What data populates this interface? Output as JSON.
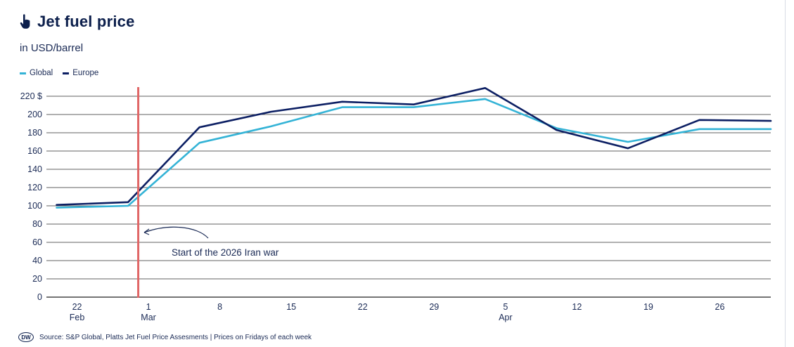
{
  "header": {
    "title": "Jet fuel price",
    "subtitle": "in USD/barrel",
    "icon": "pointing-hand-icon"
  },
  "legend": [
    {
      "label": "Global",
      "color": "#34b3d6"
    },
    {
      "label": "Europe",
      "color": "#0c1f63"
    }
  ],
  "annotation": {
    "text": "Start of the 2026 Iran war",
    "marker_color": "#e06666"
  },
  "footer": {
    "logo_text": "DW",
    "source": "Source: S&P Global, Platts Jet Fuel Price Assesments | Prices on Fridays of each week"
  },
  "chart_data": {
    "type": "line",
    "title": "Jet fuel price",
    "subtitle": "in USD/barrel",
    "ylim": [
      0,
      220
    ],
    "y_ticks": [
      0,
      20,
      40,
      60,
      80,
      100,
      120,
      140,
      160,
      180,
      200,
      220
    ],
    "y_tick_labels": [
      "0",
      "20",
      "40",
      "60",
      "80",
      "100",
      "120",
      "140",
      "160",
      "180",
      "200",
      "220 $"
    ],
    "x_ticks": [
      {
        "date": "2026-02-22",
        "day": "22",
        "month": "Feb"
      },
      {
        "date": "2026-03-01",
        "day": "1",
        "month": "Mar"
      },
      {
        "date": "2026-03-08",
        "day": "8",
        "month": ""
      },
      {
        "date": "2026-03-15",
        "day": "15",
        "month": ""
      },
      {
        "date": "2026-03-22",
        "day": "22",
        "month": ""
      },
      {
        "date": "2026-03-29",
        "day": "29",
        "month": ""
      },
      {
        "date": "2026-04-05",
        "day": "5",
        "month": "Apr"
      },
      {
        "date": "2026-04-12",
        "day": "12",
        "month": ""
      },
      {
        "date": "2026-04-19",
        "day": "19",
        "month": ""
      },
      {
        "date": "2026-04-26",
        "day": "26",
        "month": ""
      }
    ],
    "x_range": [
      "2026-02-19",
      "2026-05-01"
    ],
    "event_date": "2026-02-28",
    "series": [
      {
        "name": "Global",
        "color": "#34b3d6",
        "points": [
          {
            "date": "2026-02-20",
            "value": 98
          },
          {
            "date": "2026-02-27",
            "value": 100
          },
          {
            "date": "2026-03-06",
            "value": 169
          },
          {
            "date": "2026-03-13",
            "value": 187
          },
          {
            "date": "2026-03-20",
            "value": 208
          },
          {
            "date": "2026-03-27",
            "value": 208
          },
          {
            "date": "2026-04-03",
            "value": 217
          },
          {
            "date": "2026-04-10",
            "value": 185
          },
          {
            "date": "2026-04-17",
            "value": 170
          },
          {
            "date": "2026-04-24",
            "value": 184
          },
          {
            "date": "2026-05-01",
            "value": 184
          }
        ]
      },
      {
        "name": "Europe",
        "color": "#0c1f63",
        "points": [
          {
            "date": "2026-02-20",
            "value": 101
          },
          {
            "date": "2026-02-27",
            "value": 104
          },
          {
            "date": "2026-03-06",
            "value": 186
          },
          {
            "date": "2026-03-13",
            "value": 203
          },
          {
            "date": "2026-03-20",
            "value": 214
          },
          {
            "date": "2026-03-27",
            "value": 211
          },
          {
            "date": "2026-04-03",
            "value": 229
          },
          {
            "date": "2026-04-10",
            "value": 183
          },
          {
            "date": "2026-04-17",
            "value": 163
          },
          {
            "date": "2026-04-24",
            "value": 194
          },
          {
            "date": "2026-05-01",
            "value": 193
          }
        ]
      }
    ]
  }
}
